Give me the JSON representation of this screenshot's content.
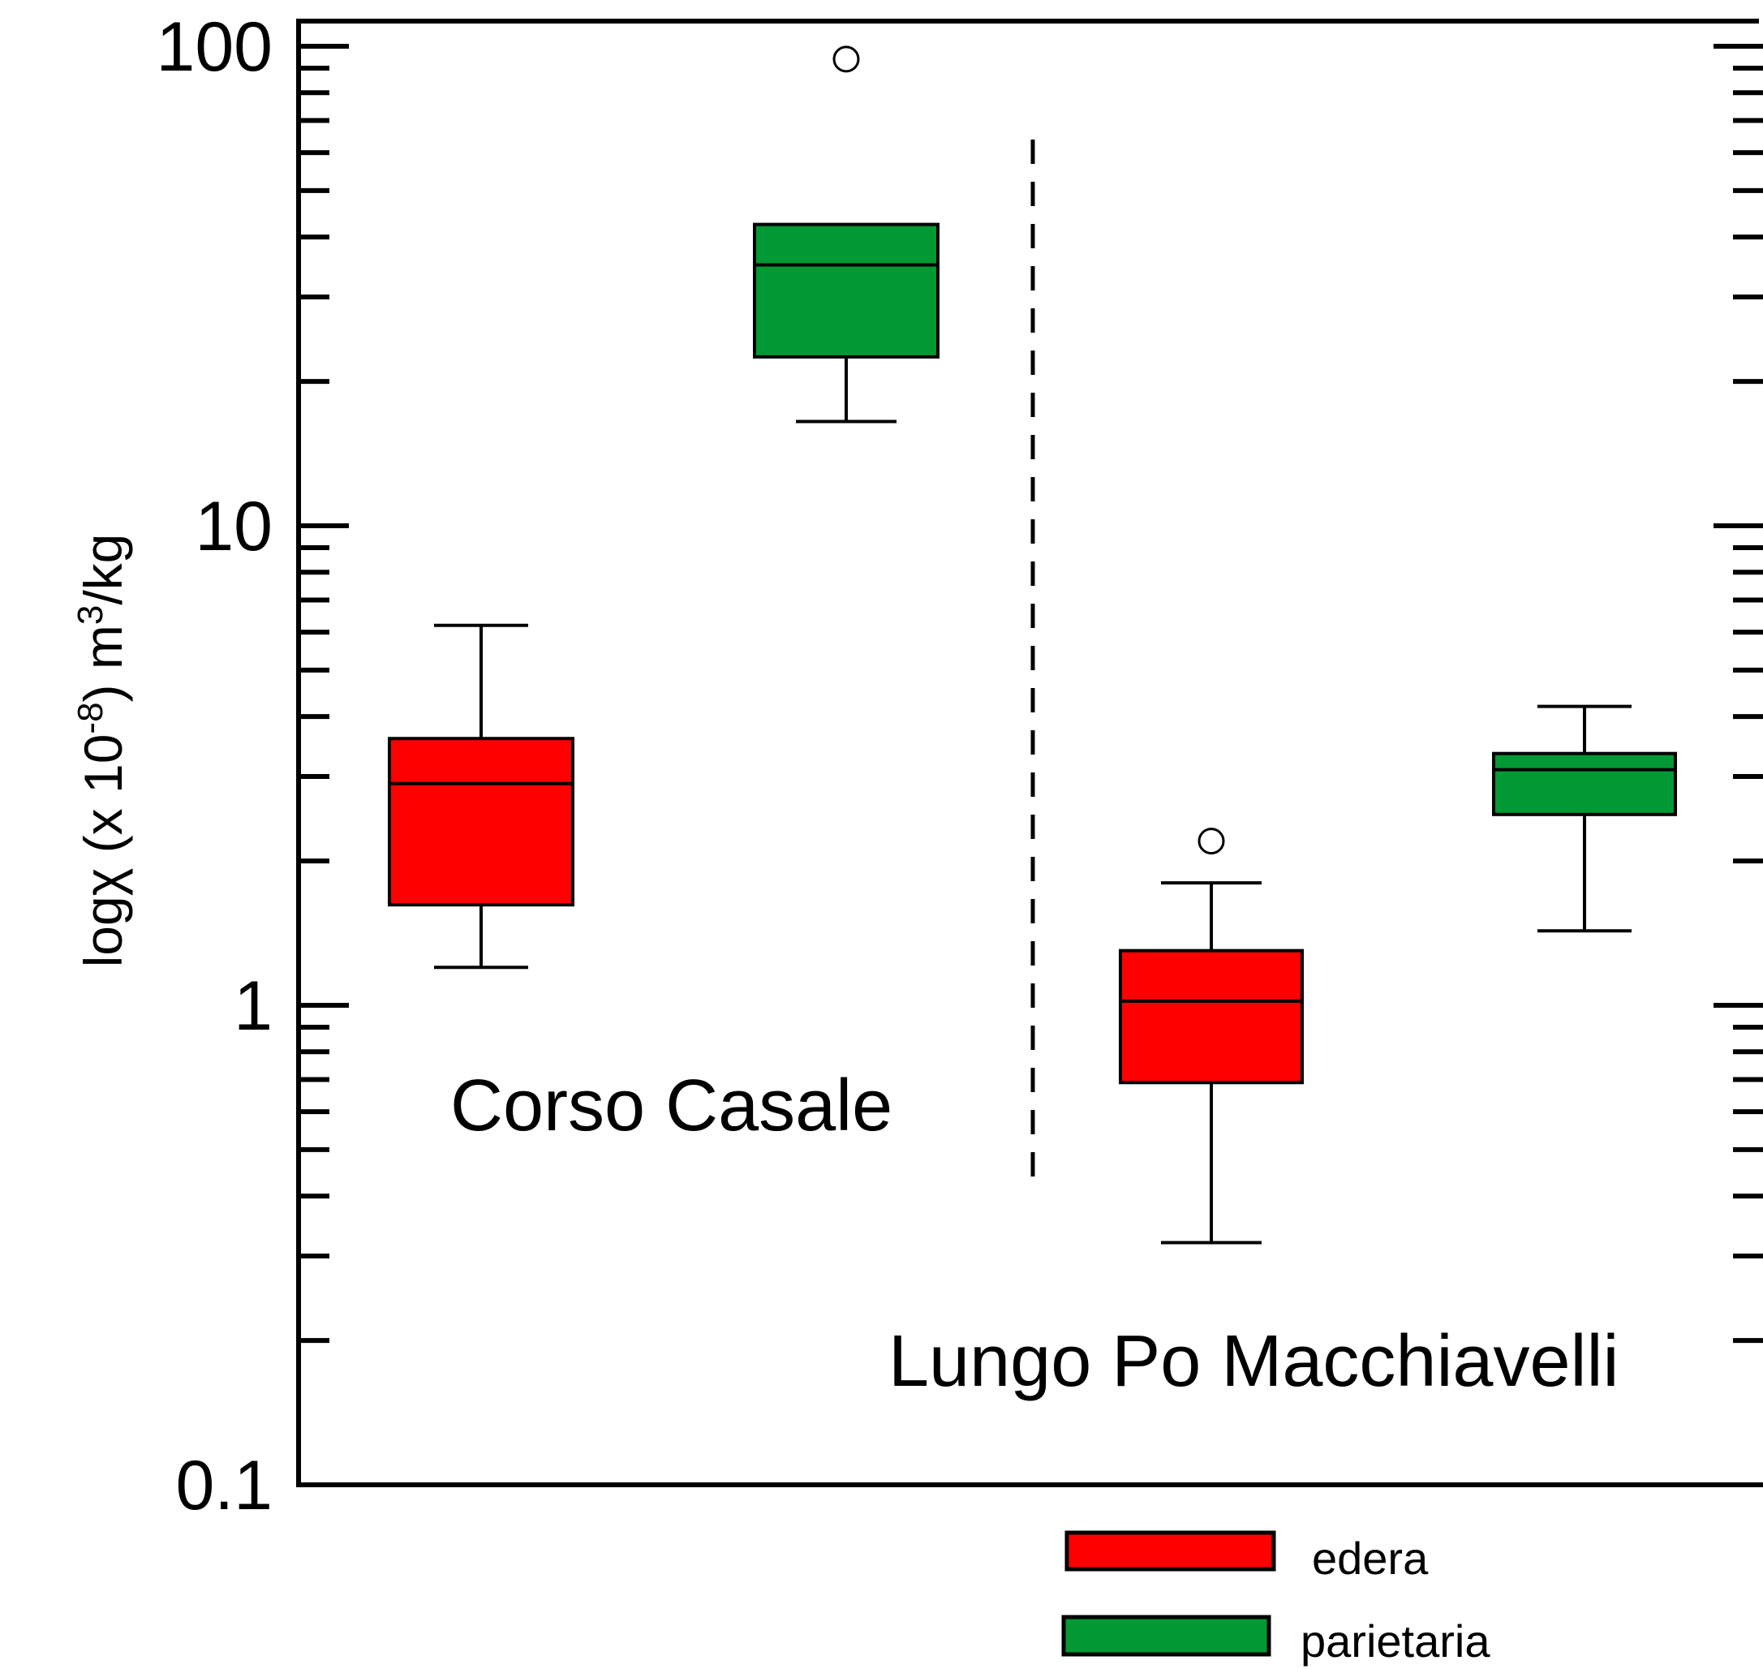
{
  "chart_data": {
    "type": "box",
    "title": "",
    "xlabel": "",
    "ylabel": {
      "prefix": "logχ (x 10",
      "exponent": "-8",
      "middle": ") m",
      "unit_exponent": "3",
      "suffix": "/kg"
    },
    "yscale": "log",
    "ylim": [
      0.1,
      100
    ],
    "yticks": [
      {
        "value": 100,
        "label": "100"
      },
      {
        "value": 10,
        "label": "10"
      },
      {
        "value": 1,
        "label": "1"
      },
      {
        "value": 0.1,
        "label": "0.1"
      }
    ],
    "groups": [
      {
        "label": "Corso Casale"
      },
      {
        "label": "Lungo Po Macchiavelli"
      }
    ],
    "boxes": [
      {
        "group": "Corso Casale",
        "series": "edera",
        "whisker_low": 1.2,
        "q1": 1.62,
        "median": 2.9,
        "q3": 3.6,
        "whisker_high": 6.2,
        "outliers": []
      },
      {
        "group": "Corso Casale",
        "series": "parietaria",
        "whisker_low": 16.5,
        "q1": 22.5,
        "median": 35,
        "q3": 42.5,
        "whisker_high": 42.5,
        "outliers": [
          94
        ]
      },
      {
        "group": "Lungo Po Macchiavelli",
        "series": "edera",
        "whisker_low": 0.32,
        "q1": 0.69,
        "median": 1.02,
        "q3": 1.3,
        "whisker_high": 1.8,
        "outliers": [
          2.2
        ]
      },
      {
        "group": "Lungo Po Macchiavelli",
        "series": "parietaria",
        "whisker_low": 1.43,
        "q1": 2.5,
        "median": 3.1,
        "q3": 3.35,
        "whisker_high": 4.2,
        "outliers": []
      }
    ],
    "legend": {
      "placement": "bottom-right",
      "entries": [
        {
          "name": "edera",
          "color": "#ff0000"
        },
        {
          "name": "parietaria",
          "color": "#009933"
        }
      ]
    },
    "grid": false
  }
}
